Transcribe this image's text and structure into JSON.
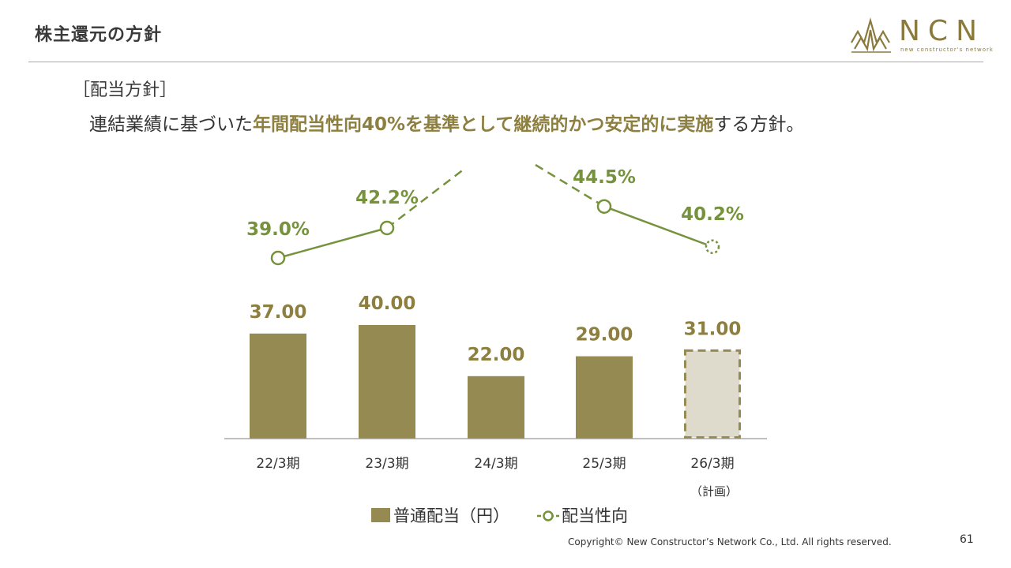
{
  "header": {
    "title": "株主還元の方針",
    "logo_text": "NCN",
    "logo_sub": "new constructor's network"
  },
  "policy": {
    "heading": "［配当方針］",
    "text_prefix": "連結業績に基づいた",
    "text_highlight": "年間配当性向40%を基準として継続的かつ安定的に実施",
    "text_suffix": "する方針。"
  },
  "colors": {
    "bar": "#948a52",
    "bar_plan_fill": "#dedbcc",
    "line": "#76923c",
    "bar_label": "#8d7f3f"
  },
  "chart_data": {
    "type": "bar",
    "categories": [
      "22/3期",
      "23/3期",
      "24/3期",
      "25/3期",
      "26/3期"
    ],
    "category_notes": [
      "",
      "",
      "",
      "",
      "（計画）"
    ],
    "series": [
      {
        "name": "普通配当（円）",
        "type": "bar",
        "values": [
          37.0,
          40.0,
          22.0,
          29.0,
          31.0
        ],
        "labels": [
          "37.00",
          "40.00",
          "22.00",
          "29.00",
          "31.00"
        ],
        "planned": [
          false,
          false,
          false,
          false,
          true
        ]
      },
      {
        "name": "配当性向",
        "type": "line",
        "values": [
          39.0,
          42.2,
          null,
          44.5,
          40.2
        ],
        "labels": [
          "39.0%",
          "42.2%",
          "",
          "44.5%",
          "40.2%"
        ],
        "planned": [
          false,
          false,
          false,
          false,
          true
        ]
      }
    ],
    "legend": [
      "普通配当（円）",
      "配当性向"
    ],
    "legend_position": "bottom"
  },
  "footer": {
    "copyright": "Copyright© New Constructor’s Network Co., Ltd. All rights reserved.",
    "page_number": "61"
  }
}
